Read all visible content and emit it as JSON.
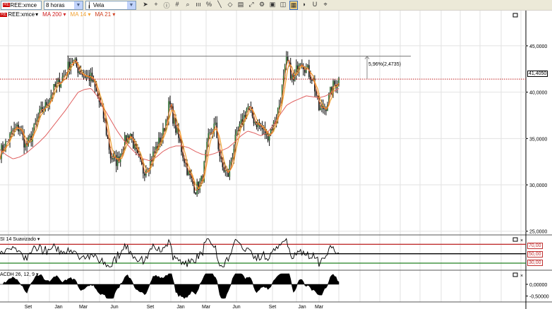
{
  "toolbar": {
    "symbol": "REE:xmce",
    "symbol_badge": "RE",
    "timeframe": "8 horas",
    "chart_type": "Vela",
    "icons": [
      "cursor-icon",
      "crosshair-icon",
      "info-icon",
      "grid-icon",
      "zoom-icon",
      "bars-icon",
      "percent-icon",
      "line-tool-icon",
      "eraser-icon",
      "layers-icon",
      "fit-icon",
      "template-icon",
      "save-icon",
      "compare-icon",
      "indicators-icon",
      "sound-icon",
      "magnet-icon",
      "pin-icon"
    ]
  },
  "legend": {
    "symbol": "REE:xmce",
    "ma200": "MA 200",
    "ma14": "MA 14",
    "ma21": "MA 21",
    "colors": {
      "ma200": "#e06060",
      "ma14": "#f07030",
      "ma21": "#f0a030",
      "ma200_label": "#d02020"
    }
  },
  "chart_data": [
    {
      "type": "candlestick",
      "panel": "price",
      "y_ticks": [
        "45,0000",
        "40,0000",
        "35,0000",
        "30,0000",
        "25,0000"
      ],
      "ylim": [
        24.6,
        48.8
      ],
      "x_ticks": [
        "Set",
        "Jan",
        "Mar",
        "Jun",
        "Set",
        "Jan",
        "Mar",
        "Jun",
        "Set",
        "Jan",
        "Mar"
      ],
      "last_price": 41.405,
      "last_price_label": "41,4050",
      "measure_annotation": "5,96%(2,4735)",
      "resistance_level": 43.88,
      "close_path": [
        33.5,
        34.5,
        35.8,
        36.2,
        34.0,
        35.5,
        37.5,
        38.5,
        40.0,
        41.0,
        42.0,
        43.6,
        42.5,
        41.8,
        41.5,
        39.5,
        37.0,
        33.0,
        32.5,
        34.5,
        35.6,
        33.0,
        31.5,
        32.5,
        34.0,
        35.5,
        38.8,
        36.0,
        33.5,
        31.0,
        29.5,
        30.5,
        35.0,
        36.5,
        32.0,
        31.0,
        34.5,
        36.5,
        38.5,
        37.0,
        36.2,
        35.3,
        36.5,
        39.0,
        43.5,
        41.0,
        43.8,
        42.5,
        41.5,
        38.0,
        38.5,
        40.5,
        41.4
      ],
      "ma200_path": [
        33.8,
        33.2,
        32.8,
        33.0,
        33.4,
        34.0,
        34.6,
        35.3,
        36.2,
        37.1,
        38.0,
        39.0,
        40.0,
        40.3,
        40.4,
        39.5,
        38.2,
        37.0,
        35.8,
        34.8,
        34.0,
        33.3,
        32.8,
        32.6,
        33.0,
        33.6,
        34.0,
        34.2,
        34.2,
        34.0,
        33.6,
        33.3,
        33.2,
        33.4,
        33.7,
        34.0,
        34.6,
        35.3,
        35.8,
        35.6,
        35.3,
        35.6,
        36.5,
        37.6,
        38.6,
        39.0,
        39.3,
        39.6,
        39.5,
        39.4,
        39.6,
        40.0,
        40.4
      ]
    },
    {
      "type": "line",
      "panel": "RSI",
      "title": "SI 14 Suavizado",
      "levels": [
        70,
        50,
        30
      ],
      "level_labels": [
        "70,00",
        "50,00",
        "30,00"
      ],
      "level_colors": [
        "#c03030",
        "#000000",
        "#208020"
      ],
      "ylim": [
        15,
        90
      ]
    },
    {
      "type": "area",
      "panel": "MACD",
      "title": "ACDH 26, 12, 9",
      "y_ticks": [
        "0,00000",
        "-0,50000"
      ],
      "ylim": [
        -0.75,
        0.6
      ]
    }
  ]
}
